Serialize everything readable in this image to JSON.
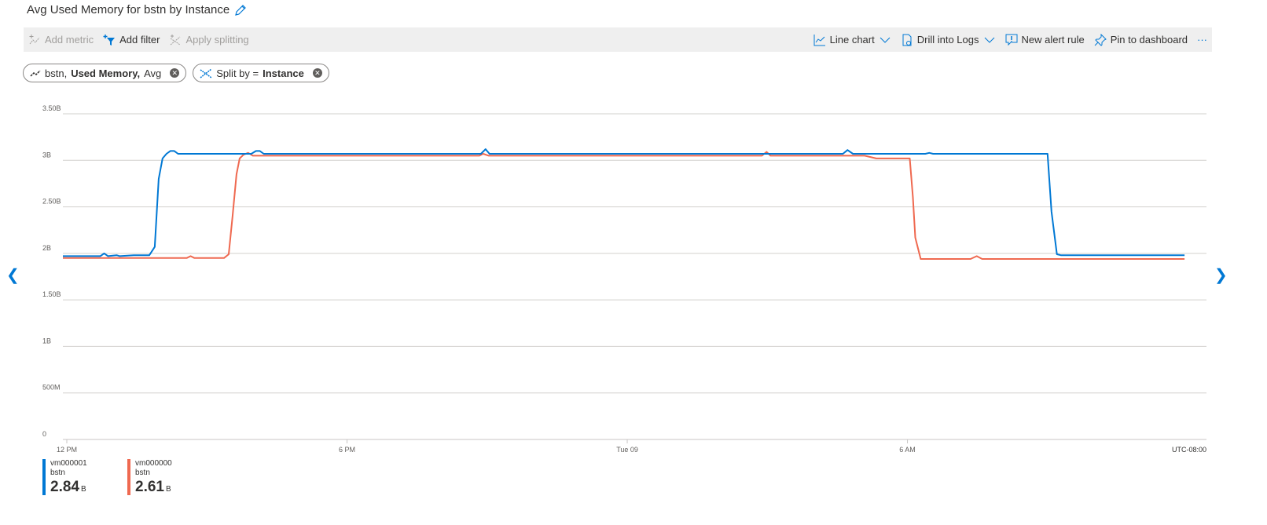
{
  "title": "Avg Used Memory for bstn by Instance",
  "toolbar": {
    "add_metric": "Add metric",
    "add_filter": "Add filter",
    "apply_splitting": "Apply splitting",
    "line_chart": "Line chart",
    "drill_logs": "Drill into Logs",
    "new_alert": "New alert rule",
    "pin": "Pin to dashboard",
    "more": "···"
  },
  "pills": {
    "metric_prefix": "bstn,",
    "metric_bold": "Used Memory,",
    "metric_suffix": "Avg",
    "split_prefix": "Split by =",
    "split_bold": "Instance"
  },
  "colors": {
    "accent": "#0078d4",
    "vm000001": "#0078d4",
    "vm000000": "#ef6950"
  },
  "chart_data": {
    "type": "line",
    "title": "",
    "xlabel": "",
    "ylabel": "",
    "ylim": [
      0,
      3500000000
    ],
    "yticks": [
      {
        "v": 0,
        "label": "0"
      },
      {
        "v": 500000000,
        "label": "500M"
      },
      {
        "v": 1000000000,
        "label": "1B"
      },
      {
        "v": 1500000000,
        "label": "1.50B"
      },
      {
        "v": 2000000000,
        "label": "2B"
      },
      {
        "v": 2500000000,
        "label": "2.50B"
      },
      {
        "v": 3000000000,
        "label": "3B"
      },
      {
        "v": 3500000000,
        "label": "3.50B"
      }
    ],
    "xticks": [
      {
        "t": "Mon 12:00",
        "label": "12 PM"
      },
      {
        "t": "Mon 18:00",
        "label": "6 PM"
      },
      {
        "t": "Tue 00:00",
        "label": "Tue 09"
      },
      {
        "t": "Tue 06:00",
        "label": "6 AM"
      }
    ],
    "timezone": "UTC-08:00",
    "grid": true,
    "series": [
      {
        "name": "vm000001",
        "sub": "bstn",
        "color": "#0078d4",
        "summary": "2.84",
        "unit": "B",
        "points": [
          [
            "Mon 11:55",
            1.97
          ],
          [
            "Mon 12:43",
            1.97
          ],
          [
            "Mon 12:48",
            2.0
          ],
          [
            "Mon 12:53",
            1.97
          ],
          [
            "Mon 13:04",
            1.98
          ],
          [
            "Mon 13:08",
            1.97
          ],
          [
            "Mon 13:26",
            1.98
          ],
          [
            "Mon 13:46",
            1.98
          ],
          [
            "Mon 13:53",
            2.07
          ],
          [
            "Mon 13:58",
            2.8
          ],
          [
            "Mon 14:03",
            3.02
          ],
          [
            "Mon 14:08",
            3.07
          ],
          [
            "Mon 14:13",
            3.1
          ],
          [
            "Mon 14:18",
            3.1
          ],
          [
            "Mon 14:23",
            3.07
          ],
          [
            "Mon 15:57",
            3.07
          ],
          [
            "Mon 16:03",
            3.1
          ],
          [
            "Mon 16:08",
            3.1
          ],
          [
            "Mon 16:13",
            3.07
          ],
          [
            "Mon 20:52",
            3.07
          ],
          [
            "Mon 20:58",
            3.12
          ],
          [
            "Mon 21:03",
            3.07
          ],
          [
            "Tue 04:37",
            3.07
          ],
          [
            "Tue 04:43",
            3.11
          ],
          [
            "Tue 04:50",
            3.07
          ],
          [
            "Tue 06:23",
            3.07
          ],
          [
            "Tue 06:28",
            3.08
          ],
          [
            "Tue 06:33",
            3.07
          ],
          [
            "Tue 09:00",
            3.07
          ],
          [
            "Tue 09:05",
            2.45
          ],
          [
            "Tue 09:12",
            1.99
          ],
          [
            "Tue 09:17",
            1.98
          ],
          [
            "Tue 11:56",
            1.98
          ]
        ]
      },
      {
        "name": "vm000000",
        "sub": "bstn",
        "color": "#ef6950",
        "summary": "2.61",
        "unit": "B",
        "points": [
          [
            "Mon 11:55",
            1.95
          ],
          [
            "Mon 14:34",
            1.95
          ],
          [
            "Mon 14:39",
            1.97
          ],
          [
            "Mon 14:44",
            1.95
          ],
          [
            "Mon 15:22",
            1.95
          ],
          [
            "Mon 15:28",
            1.99
          ],
          [
            "Mon 15:33",
            2.4
          ],
          [
            "Mon 15:38",
            2.85
          ],
          [
            "Mon 15:42",
            3.02
          ],
          [
            "Mon 15:47",
            3.06
          ],
          [
            "Mon 15:53",
            3.08
          ],
          [
            "Mon 15:59",
            3.05
          ],
          [
            "Mon 20:50",
            3.05
          ],
          [
            "Mon 20:55",
            3.07
          ],
          [
            "Mon 21:02",
            3.05
          ],
          [
            "Tue 02:53",
            3.05
          ],
          [
            "Tue 02:59",
            3.09
          ],
          [
            "Tue 03:04",
            3.05
          ],
          [
            "Tue 05:05",
            3.05
          ],
          [
            "Tue 05:20",
            3.02
          ],
          [
            "Tue 06:03",
            3.02
          ],
          [
            "Tue 06:07",
            2.6
          ],
          [
            "Tue 06:10",
            2.17
          ],
          [
            "Tue 06:17",
            1.94
          ],
          [
            "Tue 07:21",
            1.94
          ],
          [
            "Tue 07:29",
            1.97
          ],
          [
            "Tue 07:36",
            1.94
          ],
          [
            "Tue 11:56",
            1.94
          ]
        ]
      }
    ]
  }
}
